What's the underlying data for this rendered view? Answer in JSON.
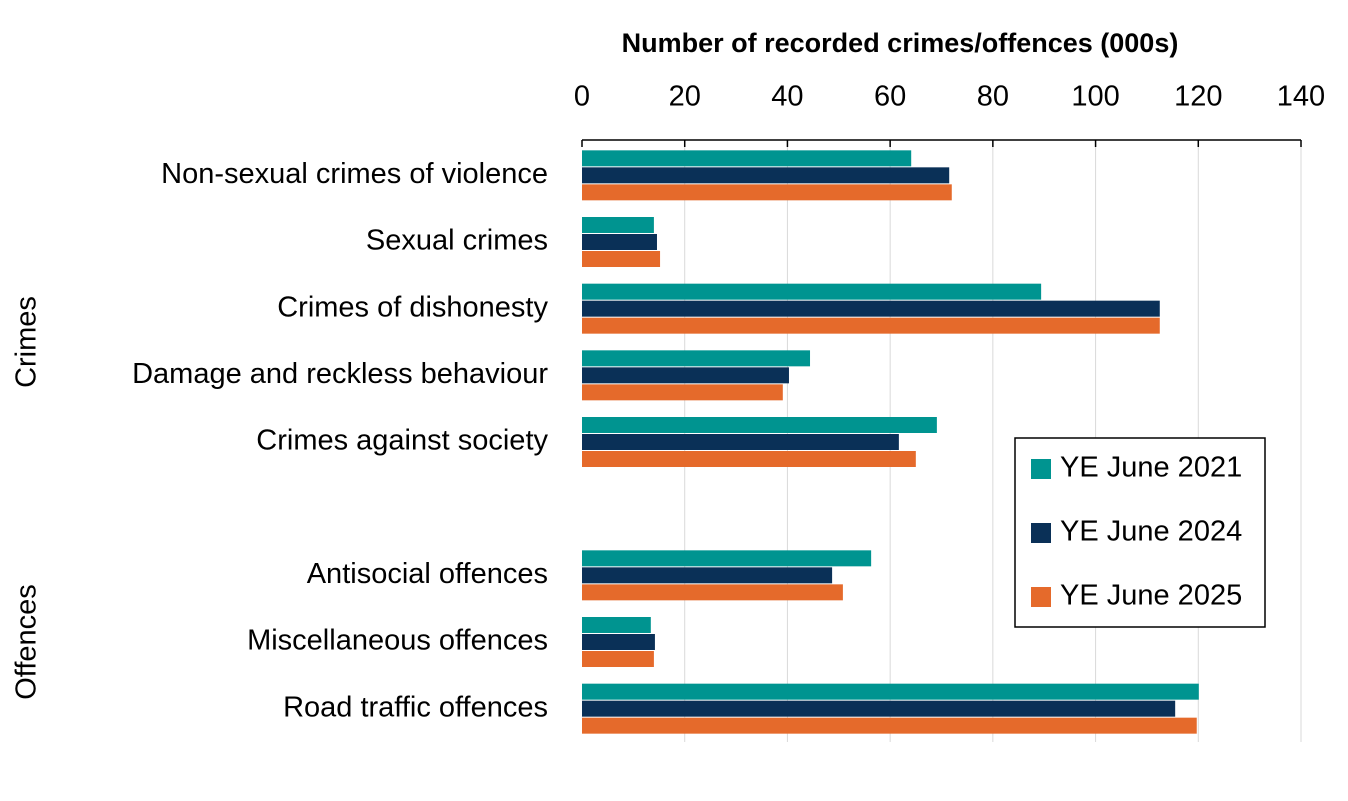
{
  "chart_data": {
    "type": "hbar",
    "x_label": "Number of recorded crimes/offences (000s)",
    "categories": [
      "Non-sexual crimes of violence",
      "Sexual crimes",
      "Crimes of dishonesty",
      "Damage and reckless behaviour",
      "Crimes against society",
      null,
      "Antisocial offences",
      "Miscellaneous offences",
      "Road traffic offences"
    ],
    "groups": [
      "Crimes",
      "Offences"
    ],
    "series": [
      {
        "name": "YE June 2021",
        "color": "#009490",
        "values": [
          64.1,
          14.0,
          89.4,
          44.4,
          69.1,
          null,
          56.3,
          13.4,
          120.1
        ]
      },
      {
        "name": "YE June 2024",
        "color": "#0a3057",
        "values": [
          71.5,
          14.6,
          112.5,
          40.3,
          61.7,
          null,
          48.7,
          14.2,
          115.5
        ]
      },
      {
        "name": "YE June 2025",
        "color": "#e56a2b",
        "values": [
          72.0,
          15.2,
          112.5,
          39.1,
          65.0,
          null,
          50.8,
          14.0,
          119.7
        ]
      }
    ],
    "xlim": [
      0,
      140
    ],
    "xticks": [
      0,
      20,
      40,
      60,
      80,
      100,
      120,
      140
    ],
    "grid": true,
    "legend": "right"
  }
}
